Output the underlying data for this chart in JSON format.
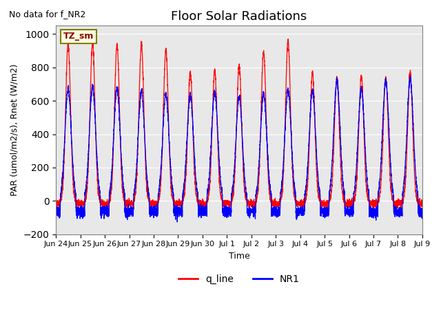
{
  "title": "Floor Solar Radiations",
  "xlabel": "Time",
  "ylabel": "PAR (umol/m2/s), Rnet (W/m2)",
  "ylim": [
    -200,
    1050
  ],
  "yticks": [
    -200,
    0,
    200,
    400,
    600,
    800,
    1000
  ],
  "note": "No data for f_NR2",
  "zone_label": "TZ_sm",
  "x_tick_labels": [
    "Jun 24",
    "Jun 25",
    "Jun 26",
    "Jun 27",
    "Jun 28",
    "Jun 29",
    "Jun 30",
    "Jul 1",
    "Jul 2",
    "Jul 3",
    "Jul 4",
    "Jul 5",
    "Jul 6",
    "Jul 7",
    "Jul 8",
    "Jul 9"
  ],
  "legend": [
    "q_line",
    "NR1"
  ],
  "line_colors": [
    "red",
    "blue"
  ],
  "background_color": "#e8e8e8",
  "n_days": 15,
  "points_per_day": 288,
  "red_peaks": [
    940,
    950,
    940,
    940,
    905,
    770,
    780,
    810,
    895,
    960,
    765,
    740,
    740,
    740,
    770
  ],
  "blue_peaks": [
    670,
    685,
    675,
    655,
    640,
    630,
    650,
    625,
    645,
    660,
    660,
    720,
    670,
    720,
    730
  ]
}
